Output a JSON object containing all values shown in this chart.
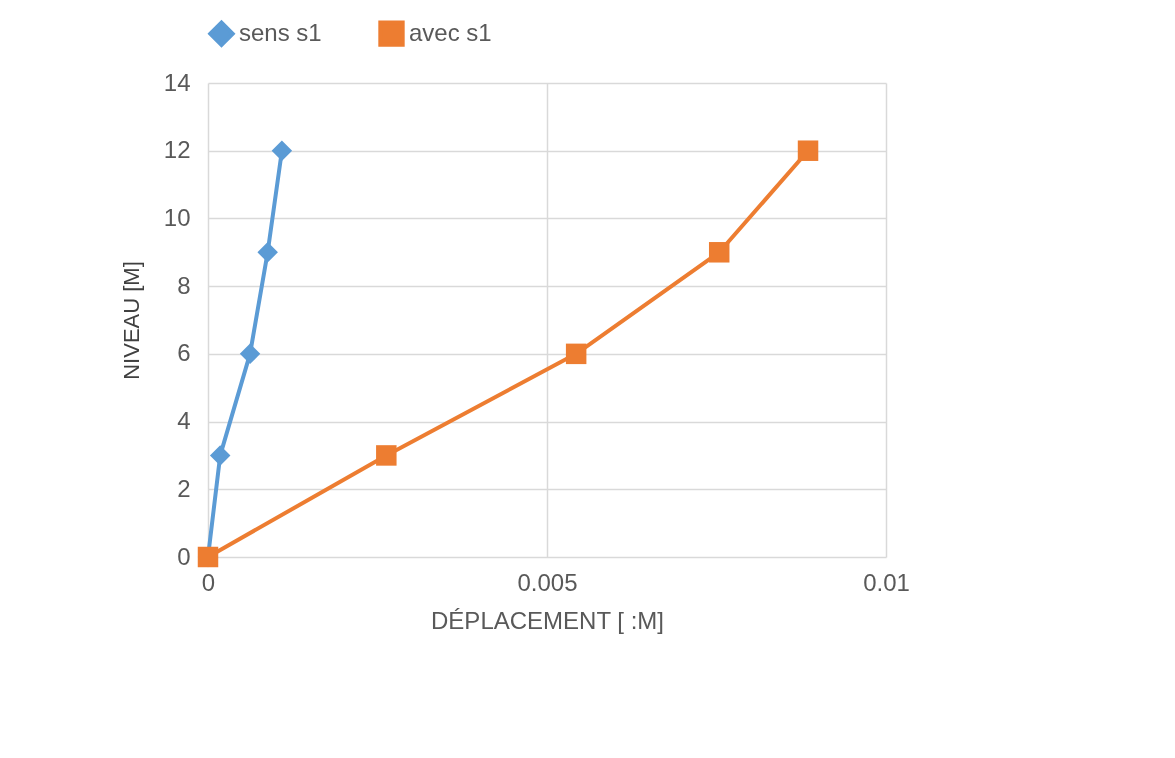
{
  "chart_data": {
    "type": "line",
    "xlabel": "DÉPLACEMENT [ :M]",
    "ylabel": "NIVEAU [M]",
    "xlim": [
      0,
      0.01
    ],
    "xticks": [
      0,
      0.005,
      0.01
    ],
    "ylim": [
      0,
      14
    ],
    "yticks": [
      0,
      2,
      4,
      6,
      8,
      10,
      12,
      14
    ],
    "grid": true,
    "legend": "top",
    "series": [
      {
        "name": "sens s1",
        "color": "#5b9bd5",
        "marker": "diamond",
        "x": [
          0,
          0.00018,
          0.00062,
          0.00088,
          0.00109
        ],
        "values": [
          0,
          3,
          6,
          9,
          12
        ]
      },
      {
        "name": "avec s1",
        "color": "#ed7d31",
        "marker": "square",
        "x": [
          0,
          0.00263,
          0.00543,
          0.00754,
          0.00885
        ],
        "values": [
          0,
          3,
          6,
          9,
          12
        ]
      }
    ]
  }
}
